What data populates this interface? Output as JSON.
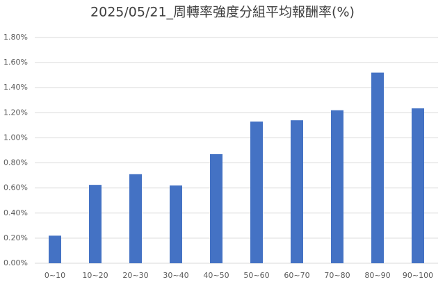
{
  "chart_data": {
    "type": "bar",
    "title": "2025/05/21_周轉率強度分組平均報酬率(%)",
    "categories": [
      "0~10",
      "10~20",
      "20~30",
      "30~40",
      "40~50",
      "50~60",
      "60~70",
      "70~80",
      "80~90",
      "90~100"
    ],
    "values": [
      0.22,
      0.625,
      0.71,
      0.62,
      0.87,
      1.13,
      1.14,
      1.22,
      1.52,
      1.235
    ],
    "color": "#4472c4",
    "ylim": [
      0,
      1.8
    ],
    "yticks": [
      {
        "value": 0,
        "label": "0.00%"
      },
      {
        "value": 0.2,
        "label": "0.20%"
      },
      {
        "value": 0.4,
        "label": "0.40%"
      },
      {
        "value": 0.6,
        "label": "0.60%"
      },
      {
        "value": 0.8,
        "label": "0.80%"
      },
      {
        "value": 1.0,
        "label": "1.00%"
      },
      {
        "value": 1.2,
        "label": "1.20%"
      },
      {
        "value": 1.4,
        "label": "1.40%"
      },
      {
        "value": 1.6,
        "label": "1.60%"
      },
      {
        "value": 1.8,
        "label": "1.80%"
      }
    ],
    "grid": true
  }
}
